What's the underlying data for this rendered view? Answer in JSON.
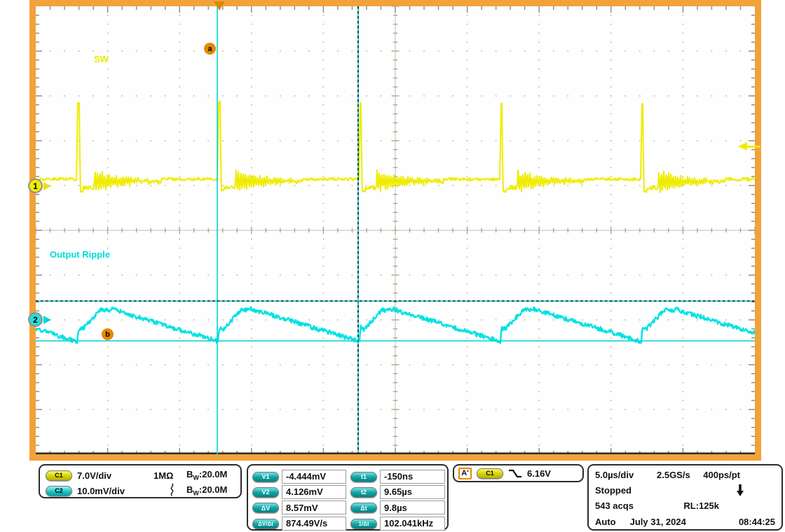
{
  "scope": {
    "ch1_label": "SW",
    "ch2_label": "Output Ripple",
    "marker_a": "a",
    "marker_b": "b",
    "ch1_ref": "1",
    "ch2_ref": "2"
  },
  "channels_panel": {
    "rows": [
      {
        "badge": "C1",
        "scale": "7.0V/div",
        "impedance": "1MΩ",
        "bw_b": "B",
        "bw_w": "W",
        "bw_value": ":20.0M"
      },
      {
        "badge": "C2",
        "scale": "10.0mV/div",
        "coupling": "ac",
        "bw_b": "B",
        "bw_w": "W",
        "bw_value": ":20.0M"
      }
    ]
  },
  "measurements_panel": {
    "left": [
      {
        "badge": "V1",
        "value": "-4.444mV"
      },
      {
        "badge": "V2",
        "value": "4.126mV"
      },
      {
        "badge": "ΔV",
        "value": "8.57mV"
      },
      {
        "badge": "ΔV/Δt",
        "value": "874.49V/s"
      }
    ],
    "right": [
      {
        "badge": "t1",
        "value": "-150ns"
      },
      {
        "badge": "t2",
        "value": "9.65µs"
      },
      {
        "badge": "Δt",
        "value": "9.8µs"
      },
      {
        "badge": "1/Δt",
        "value": "102.041kHz"
      }
    ]
  },
  "trigger_panel": {
    "label": "A'",
    "source": "C1",
    "slope": "falling",
    "level": "6.16V"
  },
  "timebase_panel": {
    "scale": "5.0µs/div",
    "sample_rate": "2.5GS/s",
    "resolution": "400ps/pt",
    "status": "Stopped",
    "acquisitions": "543 acqs",
    "record_length": "RL:125k",
    "trigger_mode": "Auto",
    "date": "July 31, 2024",
    "time": "08:44:25"
  },
  "chart_data": {
    "type": "line",
    "title": "Switching node (SW) and output ripple waveforms",
    "x_axis": {
      "scale_per_div": "5.0µs",
      "divisions": 10,
      "total_span": "50µs"
    },
    "y_axis": {
      "divisions": 10
    },
    "grid": true,
    "series": [
      {
        "name": "C1",
        "label": "SW",
        "color": "#f0ec00",
        "vertical_scale": "7.0V/div",
        "shape": "narrow positive pulses (~1.7 div tall) with decaying ringing burst after each pulse",
        "period": "9.8µs",
        "frequency": "102.041kHz"
      },
      {
        "name": "C2",
        "label": "Output Ripple",
        "color": "#00e2e2",
        "vertical_scale": "10.0mV/div",
        "shape": "sawtooth ripple: fast rise at each switching pulse then slow linear decay",
        "peak_to_peak": "8.57mV",
        "period": "9.8µs"
      }
    ],
    "cursors": {
      "t1": "-150ns",
      "t2": "9.65µs",
      "delta_t": "9.8µs",
      "one_over_dt": "102.041kHz",
      "v1": "-4.444mV",
      "v2": "4.126mV",
      "delta_v": "8.57mV",
      "slew_rate": "874.49V/s"
    },
    "trigger": {
      "source": "C1",
      "slope": "falling",
      "level": "6.16V"
    }
  }
}
